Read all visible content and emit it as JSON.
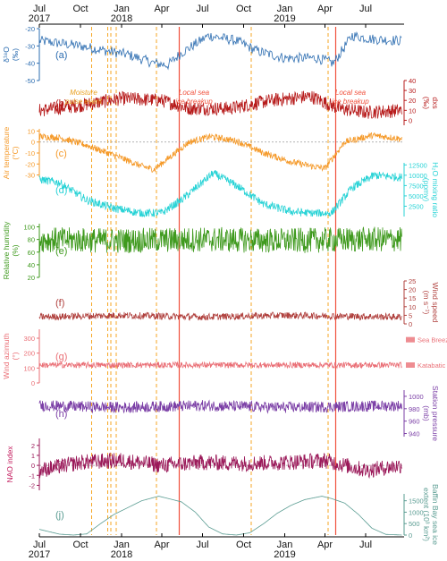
{
  "chart_data": {
    "type": "line",
    "x_range": [
      "2017-07-01",
      "2019-09-25"
    ],
    "x_ticks": [
      {
        "date": "2017-07-01",
        "label": "Jul",
        "year": "2017"
      },
      {
        "date": "2017-10-01",
        "label": "Oct",
        "year": ""
      },
      {
        "date": "2018-01-01",
        "label": "Jan",
        "year": "2018"
      },
      {
        "date": "2018-04-01",
        "label": "Apr",
        "year": ""
      },
      {
        "date": "2018-07-01",
        "label": "Jul",
        "year": ""
      },
      {
        "date": "2018-10-01",
        "label": "Oct",
        "year": ""
      },
      {
        "date": "2019-01-01",
        "label": "Jan",
        "year": "2019"
      },
      {
        "date": "2019-04-01",
        "label": "Apr",
        "year": ""
      },
      {
        "date": "2019-07-01",
        "label": "Jul",
        "year": ""
      }
    ],
    "event_lines": [
      {
        "date": "2017-10-26",
        "kind": "moisture-pulse",
        "color": "#f5a623"
      },
      {
        "date": "2017-12-01",
        "kind": "moisture-pulse",
        "color": "#f5a623"
      },
      {
        "date": "2017-12-08",
        "kind": "moisture-pulse",
        "color": "#f5a623"
      },
      {
        "date": "2017-12-20",
        "kind": "moisture-pulse",
        "color": "#f5a623"
      },
      {
        "date": "2018-03-20",
        "kind": "moisture-pulse",
        "color": "#f5a623"
      },
      {
        "date": "2018-05-10",
        "kind": "sea-ice-breakup",
        "color": "#f0503c"
      },
      {
        "date": "2018-10-18",
        "kind": "moisture-pulse",
        "color": "#f5a623"
      },
      {
        "date": "2019-04-08",
        "kind": "moisture-pulse",
        "color": "#f5a623"
      },
      {
        "date": "2019-04-25",
        "kind": "sea-ice-breakup",
        "color": "#f0503c"
      }
    ],
    "annotations": [
      {
        "text": [
          "Moisture",
          "pulse event"
        ],
        "date": "2017-10-08",
        "color": "#e8a020"
      },
      {
        "text": [
          "Local sea",
          "ice breakup"
        ],
        "date": "2018-06-12",
        "color": "#f0503c"
      },
      {
        "text": [
          "Local sea",
          "ice breakup"
        ],
        "date": "2019-05-28",
        "color": "#f0503c"
      }
    ],
    "panels": [
      {
        "id": "a",
        "letter": "(a)",
        "side": "left",
        "label": [
          "δ¹⁸O",
          "(‰)"
        ],
        "color": "#2b6cb0",
        "ylim": [
          -50,
          -20
        ],
        "ticks": [
          -50,
          -40,
          -30,
          -20
        ],
        "tick_labels": [
          "-50",
          "-40",
          "-30",
          "-20"
        ],
        "dates": [
          "2017-07-01",
          "2017-10-01",
          "2017-12-01",
          "2018-01-15",
          "2018-03-15",
          "2018-04-15",
          "2018-05-15",
          "2018-07-15",
          "2018-09-15",
          "2018-11-01",
          "2019-01-01",
          "2019-02-15",
          "2019-03-15",
          "2019-04-20",
          "2019-06-01",
          "2019-07-15",
          "2019-09-20"
        ],
        "values": [
          -27,
          -30,
          -33,
          -35,
          -40,
          -41,
          -34,
          -24,
          -27,
          -33,
          -37,
          -37,
          -37,
          -40,
          -24,
          -26,
          -27
        ],
        "noise": 3,
        "step": 2,
        "zero_line": false
      },
      {
        "id": "b",
        "letter": "(b)",
        "side": "right",
        "label": [
          "dxs",
          "(‰)"
        ],
        "color": "#b71c1c",
        "ylim": [
          -5,
          40
        ],
        "ticks": [
          0,
          10,
          20,
          30,
          40
        ],
        "tick_labels": [
          "0",
          "10",
          "20",
          "30",
          "40"
        ],
        "dates": [
          "2017-07-01",
          "2017-10-01",
          "2018-01-01",
          "2018-04-01",
          "2018-06-01",
          "2018-09-01",
          "2018-12-01",
          "2019-03-01",
          "2019-05-01",
          "2019-07-01",
          "2019-09-20"
        ],
        "values": [
          10,
          15,
          22,
          20,
          12,
          12,
          20,
          24,
          12,
          8,
          10
        ],
        "noise": 7,
        "step": 1,
        "zero_line": false
      },
      {
        "id": "c",
        "letter": "(c)",
        "side": "left",
        "label": [
          "Air temperature",
          "(°C)"
        ],
        "color": "#f59a2a",
        "ylim": [
          -32,
          12
        ],
        "ticks": [
          -30,
          -20,
          -10,
          0,
          10
        ],
        "tick_labels": [
          "-30",
          "-20",
          "-10",
          "0",
          "10"
        ],
        "dates": [
          "2017-07-01",
          "2017-08-15",
          "2017-10-15",
          "2017-12-15",
          "2018-02-15",
          "2018-03-15",
          "2018-04-15",
          "2018-06-01",
          "2018-07-20",
          "2018-09-15",
          "2018-11-15",
          "2019-01-15",
          "2019-03-01",
          "2019-04-01",
          "2019-05-15",
          "2019-07-15",
          "2019-09-20"
        ],
        "values": [
          5,
          4,
          -3,
          -12,
          -22,
          -25,
          -15,
          0,
          5,
          1,
          -10,
          -18,
          -22,
          -24,
          0,
          6,
          3
        ],
        "noise": 3,
        "step": 1,
        "zero_line": true
      },
      {
        "id": "d",
        "letter": "(d)",
        "side": "right",
        "label": [
          "H₂O mixing ratio",
          "(ppmv)"
        ],
        "color": "#29d3d6",
        "ylim": [
          0,
          13000
        ],
        "ticks": [
          2500,
          5000,
          7500,
          10000,
          12500
        ],
        "tick_labels": [
          "2500",
          "5000",
          "7500",
          "10000",
          "12500"
        ],
        "dates": [
          "2017-07-01",
          "2017-08-15",
          "2017-10-15",
          "2017-12-15",
          "2018-02-15",
          "2018-04-01",
          "2018-05-15",
          "2018-07-25",
          "2018-09-15",
          "2018-11-15",
          "2019-01-15",
          "2019-03-01",
          "2019-04-15",
          "2019-06-01",
          "2019-07-20",
          "2019-09-20"
        ],
        "values": [
          9000,
          8200,
          4000,
          2000,
          800,
          900,
          4000,
          10500,
          7500,
          3000,
          1200,
          800,
          800,
          7000,
          10000,
          9500
        ],
        "noise": 1000,
        "step": 1,
        "zero_line": false
      },
      {
        "id": "e",
        "letter": "(e)",
        "side": "left",
        "label": [
          "Relative humidity",
          "(%)"
        ],
        "color": "#3f9a1e",
        "ylim": [
          20,
          105
        ],
        "ticks": [
          20,
          40,
          60,
          80,
          100
        ],
        "tick_labels": [
          "20",
          "40",
          "60",
          "80",
          "100"
        ],
        "dates": [
          "2017-07-01",
          "2018-01-01",
          "2018-07-01",
          "2019-01-01",
          "2019-07-01",
          "2019-09-20"
        ],
        "values": [
          80,
          78,
          80,
          78,
          80,
          80
        ],
        "noise": 20,
        "step": 1,
        "zero_line": false
      },
      {
        "id": "f",
        "letter": "(f)",
        "side": "right",
        "label": [
          "Wind speed",
          "(m s⁻¹)"
        ],
        "color": "#b0413e",
        "ylim": [
          0,
          25
        ],
        "ticks": [
          0,
          5,
          10,
          15,
          20,
          25
        ],
        "tick_labels": [
          "0",
          "5",
          "10",
          "15",
          "20",
          "25"
        ],
        "dates": [
          "2017-07-01",
          "2018-01-01",
          "2018-07-01",
          "2019-01-01",
          "2019-09-20"
        ],
        "values": [
          4,
          5,
          4,
          5,
          4
        ],
        "noise": 2,
        "step": 1,
        "zero_line": false
      },
      {
        "id": "g",
        "letter": "(g)",
        "side": "left",
        "label": [
          "Wind azimuth",
          "(°)"
        ],
        "color": "#ea6f76",
        "ylim": [
          0,
          360
        ],
        "ticks": [
          0,
          100,
          200,
          300
        ],
        "tick_labels": [
          "0",
          "100",
          "200",
          "300"
        ],
        "dates": [
          "2017-07-01",
          "2018-01-01",
          "2018-07-01",
          "2019-01-01",
          "2019-09-20"
        ],
        "values": [
          120,
          120,
          120,
          120,
          120
        ],
        "noise": 20,
        "step": 1,
        "zero_line": false,
        "right_labels": [
          {
            "text": "Sea Breeze",
            "value": 290
          },
          {
            "text": "Katabatic",
            "value": 120
          }
        ]
      },
      {
        "id": "h",
        "letter": "(h)",
        "side": "right",
        "label": [
          "Station pressure",
          "(mb)"
        ],
        "color": "#7b3fa6",
        "ylim": [
          935,
          1010
        ],
        "ticks": [
          940,
          960,
          980,
          1000
        ],
        "tick_labels": [
          "940",
          "960",
          "980",
          "1000"
        ],
        "dates": [
          "2017-07-01",
          "2018-01-01",
          "2018-07-01",
          "2019-01-01",
          "2019-09-20"
        ],
        "values": [
          985,
          982,
          985,
          982,
          985
        ],
        "noise": 9,
        "step": 1,
        "zero_line": false
      },
      {
        "id": "i",
        "letter": "(i)",
        "side": "left",
        "label": [
          "NAO index",
          ""
        ],
        "color": "#9b1a5a",
        "label_color": "#c2185b",
        "ylim": [
          -2.5,
          2.7
        ],
        "ticks": [
          -2,
          -1,
          0,
          1,
          2
        ],
        "tick_labels": [
          "-2",
          "-1",
          "0",
          "1",
          "2"
        ],
        "dates": [
          "2017-07-01",
          "2017-10-01",
          "2018-01-01",
          "2018-04-01",
          "2018-07-01",
          "2018-10-01",
          "2019-01-01",
          "2019-04-01",
          "2019-07-01",
          "2019-09-20"
        ],
        "values": [
          -0.5,
          0.3,
          0.5,
          0,
          0.3,
          0.2,
          0.3,
          0.5,
          -0.5,
          0
        ],
        "noise": 0.8,
        "step": 1,
        "zero_line": true
      },
      {
        "id": "j",
        "letter": "(j)",
        "side": "right",
        "label": [
          "Baffin Bay sea ice",
          "extent (10³ km²)"
        ],
        "color": "#5a9c92",
        "ylim": [
          0,
          1800
        ],
        "ticks": [
          0,
          500,
          1000,
          1500
        ],
        "tick_labels": [
          "0",
          "500",
          "1000",
          "1500"
        ],
        "dates": [
          "2017-07-01",
          "2017-08-15",
          "2017-09-15",
          "2017-10-15",
          "2017-11-15",
          "2017-12-15",
          "2018-01-15",
          "2018-02-15",
          "2018-03-25",
          "2018-04-15",
          "2018-05-15",
          "2018-06-15",
          "2018-07-15",
          "2018-08-15",
          "2018-09-15",
          "2018-10-15",
          "2018-11-15",
          "2018-12-15",
          "2019-01-15",
          "2019-02-15",
          "2019-03-25",
          "2019-04-15",
          "2019-05-15",
          "2019-06-15",
          "2019-07-15",
          "2019-08-15",
          "2019-09-20"
        ],
        "values": [
          250,
          40,
          0,
          50,
          500,
          900,
          1200,
          1500,
          1700,
          1600,
          1450,
          1000,
          350,
          50,
          0,
          100,
          500,
          950,
          1300,
          1550,
          1700,
          1600,
          1400,
          900,
          300,
          30,
          0
        ],
        "noise": 0,
        "step": 1,
        "zero_line": false
      }
    ]
  }
}
